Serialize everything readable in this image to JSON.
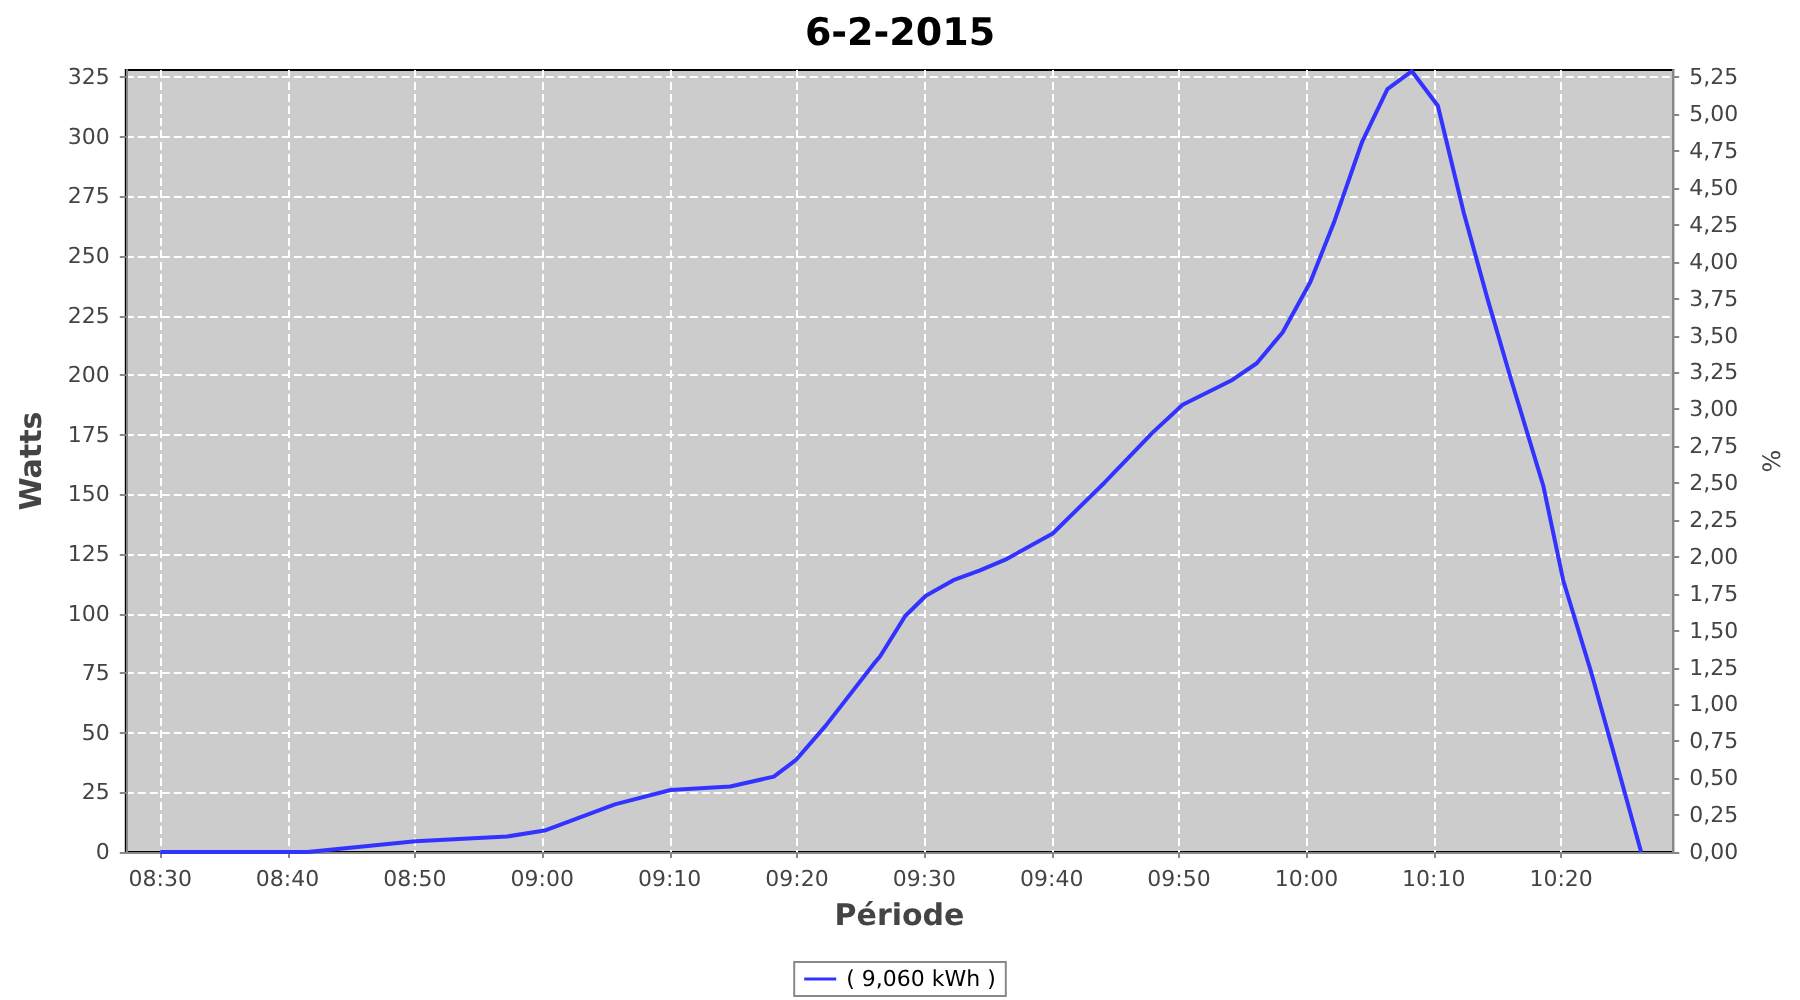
{
  "chart_data": {
    "type": "line",
    "title": "6-2-2015",
    "xlabel": "Période",
    "ylabel": "Watts",
    "y2label": "%",
    "x": [
      8.5,
      8.667,
      8.693,
      8.834,
      8.954,
      9.003,
      9.095,
      9.168,
      9.246,
      9.303,
      9.332,
      9.371,
      9.434,
      9.442,
      9.475,
      9.502,
      9.538,
      9.572,
      9.606,
      9.668,
      9.736,
      9.799,
      9.838,
      9.903,
      9.935,
      9.969,
      10.005,
      10.036,
      10.073,
      10.106,
      10.138,
      10.172,
      10.206,
      10.237,
      10.268,
      10.31,
      10.336,
      10.373,
      10.407,
      10.438
    ],
    "series": [
      {
        "name": "( 9,060 kWh )",
        "color": "#3333ff",
        "values": [
          0,
          0,
          0,
          4.5,
          6.5,
          9,
          20,
          26,
          27.5,
          31.6,
          38.6,
          53,
          79,
          82,
          99,
          107.5,
          114,
          118,
          122.6,
          133.6,
          155,
          176,
          187.6,
          198,
          205,
          218,
          239,
          264,
          298,
          320,
          327.5,
          313,
          268,
          232,
          198,
          153.6,
          114,
          75,
          36,
          0
        ]
      }
    ],
    "xlim": [
      8.455,
      10.48
    ],
    "xticks": [
      {
        "value": 8.5,
        "label": "08:30"
      },
      {
        "value": 8.6666667,
        "label": "08:40"
      },
      {
        "value": 8.8333333,
        "label": "08:50"
      },
      {
        "value": 9,
        "label": "09:00"
      },
      {
        "value": 9.1666667,
        "label": "09:10"
      },
      {
        "value": 9.3333333,
        "label": "09:20"
      },
      {
        "value": 9.5,
        "label": "09:30"
      },
      {
        "value": 9.6666667,
        "label": "09:40"
      },
      {
        "value": 9.8333333,
        "label": "09:50"
      },
      {
        "value": 10,
        "label": "10:00"
      },
      {
        "value": 10.1666667,
        "label": "10:10"
      },
      {
        "value": 10.3333333,
        "label": "10:20"
      }
    ],
    "ylim": [
      0,
      328
    ],
    "yticks": [
      0,
      25,
      50,
      75,
      100,
      125,
      150,
      175,
      200,
      225,
      250,
      275,
      300,
      325
    ],
    "y2lim": [
      0,
      5.3
    ],
    "y2ticks": [
      {
        "value": 0,
        "label": "0,00"
      },
      {
        "value": 0.25,
        "label": "0,25"
      },
      {
        "value": 0.5,
        "label": "0,50"
      },
      {
        "value": 0.75,
        "label": "0,75"
      },
      {
        "value": 1,
        "label": "1,00"
      },
      {
        "value": 1.25,
        "label": "1,25"
      },
      {
        "value": 1.5,
        "label": "1,50"
      },
      {
        "value": 1.75,
        "label": "1,75"
      },
      {
        "value": 2,
        "label": "2,00"
      },
      {
        "value": 2.25,
        "label": "2,25"
      },
      {
        "value": 2.5,
        "label": "2,50"
      },
      {
        "value": 2.75,
        "label": "2,75"
      },
      {
        "value": 3,
        "label": "3,00"
      },
      {
        "value": 3.25,
        "label": "3,25"
      },
      {
        "value": 3.5,
        "label": "3,50"
      },
      {
        "value": 3.75,
        "label": "3,75"
      },
      {
        "value": 4,
        "label": "4,00"
      },
      {
        "value": 4.25,
        "label": "4,25"
      },
      {
        "value": 4.5,
        "label": "4,50"
      },
      {
        "value": 4.75,
        "label": "4,75"
      },
      {
        "value": 5,
        "label": "5,00"
      },
      {
        "value": 5.25,
        "label": "5,25"
      }
    ],
    "grid": true,
    "legend": "bottom",
    "marker": "none",
    "line_style": "solid"
  }
}
